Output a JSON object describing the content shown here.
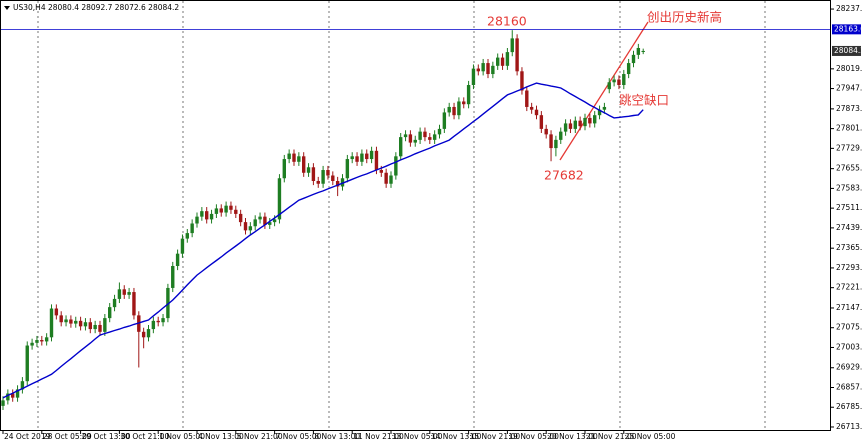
{
  "chart_data": {
    "type": "candlestick",
    "header": "US30,H4 28080.4 28092.7 28072.6 28084.2",
    "ylim": [
      26702,
      28270
    ],
    "yticks": [
      {
        "value": 28237,
        "label": "28237.0"
      },
      {
        "value": 28019,
        "label": "28019.0"
      },
      {
        "value": 27947,
        "label": "27947.0"
      },
      {
        "value": 27873,
        "label": "27873.0"
      },
      {
        "value": 27801,
        "label": "27801.0"
      },
      {
        "value": 27729,
        "label": "27729.0"
      },
      {
        "value": 27655,
        "label": "27655.0"
      },
      {
        "value": 27583,
        "label": "27583.0"
      },
      {
        "value": 27511,
        "label": "27511.0"
      },
      {
        "value": 27439,
        "label": "27439.0"
      },
      {
        "value": 27365,
        "label": "27365.0"
      },
      {
        "value": 27293,
        "label": "27293.0"
      },
      {
        "value": 27221,
        "label": "27221.0"
      },
      {
        "value": 27147,
        "label": "27147.0"
      },
      {
        "value": 27075,
        "label": "27075.0"
      },
      {
        "value": 27003,
        "label": "27003.0"
      },
      {
        "value": 26929,
        "label": "26929.0"
      },
      {
        "value": 26857,
        "label": "26857.0"
      },
      {
        "value": 26785,
        "label": "26785.0"
      },
      {
        "value": 26713,
        "label": "26713.0"
      }
    ],
    "price_line": {
      "value": 28163,
      "label": "28163.0",
      "color": "#0000cc"
    },
    "current_price": {
      "value": 28084.2,
      "label": "28084.2"
    },
    "up_color": "#1e7d22",
    "down_color": "#a01616",
    "categories": [
      "24 Oct 2019",
      null,
      null,
      null,
      null,
      null,
      null,
      null,
      "28 Oct 05:00",
      null,
      null,
      null,
      null,
      null,
      null,
      null,
      "29 Oct 13:00",
      null,
      null,
      null,
      null,
      null,
      null,
      null,
      "30 Oct 21:00",
      null,
      null,
      null,
      null,
      null,
      null,
      null,
      "1 Nov 05:00",
      null,
      null,
      null,
      null,
      null,
      null,
      null,
      "4 Nov 13:00",
      null,
      null,
      null,
      null,
      null,
      null,
      null,
      "5 Nov 21:00",
      null,
      null,
      null,
      null,
      null,
      null,
      null,
      "7 Nov 05:00",
      null,
      null,
      null,
      null,
      null,
      null,
      null,
      "8 Nov 13:00",
      null,
      null,
      null,
      null,
      null,
      null,
      null,
      "11 Nov 21:00",
      null,
      null,
      null,
      null,
      null,
      null,
      null,
      "13 Nov 05:00",
      null,
      null,
      null,
      null,
      null,
      null,
      null,
      "14 Nov 13:00",
      null,
      null,
      null,
      null,
      null,
      null,
      null,
      "15 Nov 21:00",
      null,
      null,
      null,
      null,
      null,
      null,
      null,
      "19 Nov 05:00",
      null,
      null,
      null,
      null,
      null,
      null,
      null,
      "20 Nov 13:00",
      null,
      null,
      null,
      null,
      null,
      null,
      null,
      "21 Nov 21:00",
      null,
      null,
      null,
      null,
      null,
      null,
      null,
      "25 Nov 05:00",
      null,
      null,
      null,
      null
    ],
    "open": [
      26790,
      26810,
      26835,
      26820,
      26850,
      26880,
      27010,
      27020,
      27030,
      27025,
      27040,
      27145,
      27120,
      27095,
      27105,
      27090,
      27100,
      27080,
      27095,
      27070,
      27085,
      27060,
      27110,
      27150,
      27180,
      27215,
      27195,
      27205,
      27120,
      27060,
      27040,
      27070,
      27100,
      27095,
      27110,
      27220,
      27300,
      27345,
      27400,
      27420,
      27455,
      27480,
      27500,
      27470,
      27490,
      27510,
      27495,
      27520,
      27505,
      27490,
      27460,
      27430,
      27445,
      27470,
      27480,
      27450,
      27460,
      27470,
      27620,
      27690,
      27710,
      27680,
      27700,
      27640,
      27660,
      27610,
      27600,
      27650,
      27630,
      27610,
      27590,
      27620,
      27690,
      27700,
      27680,
      27710,
      27690,
      27720,
      27650,
      27640,
      27600,
      27630,
      27700,
      27770,
      27780,
      27750,
      27760,
      27790,
      27770,
      27760,
      27780,
      27800,
      27860,
      27880,
      27850,
      27900,
      27890,
      27960,
      28020,
      28010,
      28040,
      28000,
      28030,
      28060,
      28030,
      28080,
      28130,
      28010,
      27940,
      27880,
      27870,
      27850,
      27800,
      27780,
      27730,
      27760,
      27790,
      27820,
      27800,
      27830,
      27810,
      27840,
      27820,
      27850,
      27870,
      27945,
      27970,
      27980,
      27960,
      28000,
      28040,
      28070,
      28080.4
    ],
    "high": [
      26825,
      26850,
      26850,
      26865,
      26895,
      27025,
      27035,
      27045,
      27045,
      27055,
      27160,
      27160,
      27135,
      27120,
      27120,
      27115,
      27115,
      27110,
      27110,
      27100,
      27100,
      27125,
      27165,
      27195,
      27240,
      27230,
      27220,
      27220,
      27135,
      27075,
      27085,
      27115,
      27115,
      27125,
      27235,
      27315,
      27360,
      27415,
      27435,
      27470,
      27495,
      27515,
      27515,
      27505,
      27525,
      27525,
      27535,
      27535,
      27520,
      27505,
      27475,
      27460,
      27485,
      27495,
      27495,
      27475,
      27485,
      27635,
      27705,
      27725,
      27725,
      27715,
      27715,
      27675,
      27675,
      27625,
      27665,
      27665,
      27645,
      27625,
      27635,
      27705,
      27715,
      27715,
      27725,
      27725,
      27735,
      27735,
      27665,
      27655,
      27645,
      27715,
      27785,
      27795,
      27795,
      27775,
      27805,
      27805,
      27785,
      27795,
      27815,
      27875,
      27895,
      27895,
      27915,
      27915,
      27975,
      28035,
      28035,
      28055,
      28055,
      28045,
      28075,
      28075,
      28095,
      28160,
      28145,
      28025,
      27955,
      27895,
      27885,
      27865,
      27815,
      27795,
      27775,
      27805,
      27835,
      27835,
      27845,
      27845,
      27855,
      27855,
      27865,
      27885,
      27895,
      27985,
      27995,
      27995,
      28015,
      28055,
      28085,
      28110,
      28092.7
    ],
    "low": [
      26775,
      26795,
      26805,
      26805,
      26835,
      26865,
      26995,
      27005,
      27010,
      27010,
      27025,
      27105,
      27080,
      27080,
      27075,
      27075,
      27065,
      27065,
      27055,
      27055,
      27045,
      27045,
      27095,
      27135,
      27165,
      27180,
      27180,
      27105,
      26930,
      27000,
      27025,
      27055,
      27080,
      27080,
      27095,
      27205,
      27285,
      27330,
      27385,
      27405,
      27440,
      27465,
      27455,
      27455,
      27475,
      27480,
      27480,
      27490,
      27475,
      27445,
      27415,
      27415,
      27430,
      27455,
      27435,
      27435,
      27445,
      27455,
      27605,
      27675,
      27665,
      27665,
      27625,
      27625,
      27595,
      27585,
      27585,
      27615,
      27595,
      27555,
      27575,
      27605,
      27675,
      27665,
      27665,
      27675,
      27675,
      27635,
      27625,
      27585,
      27585,
      27615,
      27685,
      27755,
      27735,
      27735,
      27745,
      27755,
      27745,
      27745,
      27765,
      27785,
      27845,
      27835,
      27835,
      27875,
      27875,
      27945,
      27995,
      27995,
      27985,
      27985,
      28015,
      28015,
      28015,
      28065,
      27995,
      27925,
      27865,
      27855,
      27835,
      27785,
      27765,
      27682,
      27700,
      27745,
      27775,
      27785,
      27785,
      27795,
      27795,
      27805,
      27805,
      27835,
      27855,
      27930,
      27955,
      27945,
      27945,
      27985,
      28025,
      28055,
      28072.6
    ],
    "close": [
      26810,
      26835,
      26820,
      26850,
      26880,
      27010,
      27020,
      27030,
      27025,
      27040,
      27145,
      27120,
      27095,
      27105,
      27090,
      27100,
      27080,
      27095,
      27070,
      27085,
      27060,
      27110,
      27150,
      27180,
      27215,
      27195,
      27205,
      27120,
      27060,
      27040,
      27070,
      27100,
      27095,
      27110,
      27220,
      27300,
      27345,
      27400,
      27420,
      27455,
      27480,
      27500,
      27470,
      27490,
      27510,
      27495,
      27520,
      27505,
      27490,
      27460,
      27430,
      27445,
      27470,
      27480,
      27450,
      27460,
      27470,
      27620,
      27690,
      27710,
      27680,
      27700,
      27640,
      27660,
      27610,
      27600,
      27650,
      27630,
      27610,
      27590,
      27620,
      27690,
      27700,
      27680,
      27710,
      27690,
      27720,
      27650,
      27640,
      27600,
      27630,
      27700,
      27770,
      27780,
      27750,
      27760,
      27790,
      27770,
      27760,
      27780,
      27800,
      27860,
      27880,
      27850,
      27900,
      27890,
      27960,
      28020,
      28010,
      28040,
      28000,
      28030,
      28060,
      28030,
      28080,
      28130,
      28010,
      27940,
      27880,
      27870,
      27850,
      27800,
      27780,
      27730,
      27760,
      27790,
      27820,
      27800,
      27830,
      27810,
      27840,
      27820,
      27850,
      27870,
      27880,
      27970,
      27980,
      27960,
      28000,
      28040,
      28070,
      28095,
      28084.2
    ],
    "ma": {
      "color": "#0000cc",
      "values": [
        26819,
        26828,
        26836,
        26845,
        26853,
        26862,
        26871,
        26879,
        26888,
        26896,
        26905,
        26919,
        26934,
        26948,
        26962,
        26977,
        26991,
        27005,
        27019,
        27034,
        27048,
        27054,
        27059,
        27065,
        27070,
        27076,
        27081,
        27087,
        27092,
        27098,
        27103,
        27118,
        27132,
        27147,
        27161,
        27176,
        27194,
        27212,
        27231,
        27249,
        27267,
        27280,
        27294,
        27307,
        27320,
        27333,
        27347,
        27360,
        27373,
        27386,
        27400,
        27413,
        27425,
        27438,
        27450,
        27463,
        27475,
        27488,
        27501,
        27514,
        27527,
        27540,
        27547,
        27554,
        27561,
        27568,
        27574,
        27581,
        27588,
        27595,
        27602,
        27609,
        27616,
        27623,
        27630,
        27636,
        27643,
        27650,
        27657,
        27664,
        27672,
        27679,
        27687,
        27694,
        27701,
        27709,
        27716,
        27723,
        27730,
        27738,
        27745,
        27752,
        27759,
        27773,
        27786,
        27800,
        27813,
        27827,
        27840,
        27854,
        27868,
        27882,
        27896,
        27910,
        27924,
        27931,
        27938,
        27945,
        27953,
        27960,
        27967,
        27963,
        27960,
        27956,
        27953,
        27949,
        27939,
        27928,
        27918,
        27908,
        27898,
        27887,
        27878,
        27868,
        27859,
        27849,
        27840,
        27842,
        27844,
        27846,
        27849,
        27851,
        27870
      ]
    },
    "annotations": [
      "28160",
      "27682",
      "创出历史新高",
      "跳空缺口"
    ],
    "annotation_color": "#e53935"
  }
}
